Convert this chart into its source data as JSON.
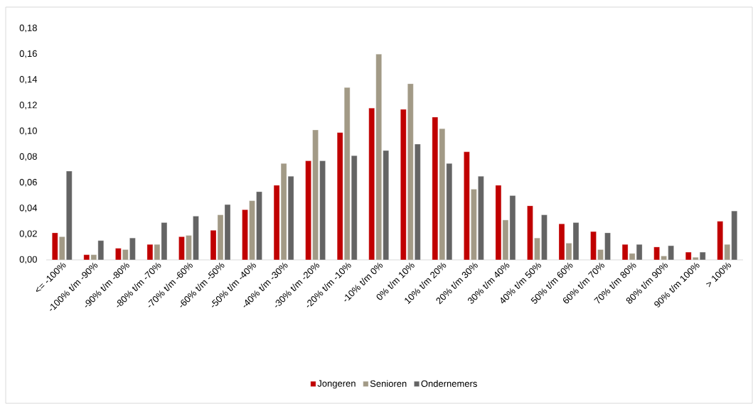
{
  "chart_data": {
    "type": "bar",
    "categories": [
      "<= -100%",
      "-100% t/m -90%",
      "-90% t/m -80%",
      "-80% t/m -70%",
      "-70% t/m -60%",
      "-60% t/m -50%",
      "-50% t/m -40%",
      "-40% t/m -30%",
      "-30% t/m -20%",
      "-20% t/m -10%",
      "-10% t/m 0%",
      "0% t/m 10%",
      "10% t/m 20%",
      "20% t/m 30%",
      "30% t/m 40%",
      "40% t/m 50%",
      "50% t/m 60%",
      "60% t/m 70%",
      "70% t/m 80%",
      "80% t/m 90%",
      "90% t/m 100%",
      "> 100%"
    ],
    "series": [
      {
        "name": "Jongeren",
        "color": "#c00000",
        "values": [
          0.021,
          0.004,
          0.009,
          0.012,
          0.018,
          0.023,
          0.039,
          0.058,
          0.077,
          0.099,
          0.118,
          0.117,
          0.111,
          0.084,
          0.058,
          0.042,
          0.028,
          0.022,
          0.012,
          0.01,
          0.006,
          0.03
        ]
      },
      {
        "name": "Senioren",
        "color": "#a29a86",
        "values": [
          0.018,
          0.004,
          0.008,
          0.012,
          0.019,
          0.035,
          0.046,
          0.075,
          0.101,
          0.134,
          0.16,
          0.137,
          0.102,
          0.055,
          0.031,
          0.017,
          0.013,
          0.008,
          0.005,
          0.003,
          0.002,
          0.012
        ]
      },
      {
        "name": "Ondernemers",
        "color": "#646464",
        "values": [
          0.069,
          0.015,
          0.017,
          0.029,
          0.034,
          0.043,
          0.053,
          0.065,
          0.077,
          0.081,
          0.085,
          0.09,
          0.075,
          0.065,
          0.05,
          0.035,
          0.029,
          0.021,
          0.012,
          0.011,
          0.006,
          0.038
        ]
      }
    ],
    "ylim": [
      0,
      0.18
    ],
    "yticks": [
      {
        "value": 0,
        "label": "0,00"
      },
      {
        "value": 0.02,
        "label": "0,02"
      },
      {
        "value": 0.04,
        "label": "0,04"
      },
      {
        "value": 0.06,
        "label": "0,06"
      },
      {
        "value": 0.08,
        "label": "0,08"
      },
      {
        "value": 0.1,
        "label": "0,10"
      },
      {
        "value": 0.12,
        "label": "0,12"
      },
      {
        "value": 0.14,
        "label": "0,14"
      },
      {
        "value": 0.16,
        "label": "0,16"
      },
      {
        "value": 0.18,
        "label": "0,18"
      }
    ],
    "legend": "bottom"
  }
}
